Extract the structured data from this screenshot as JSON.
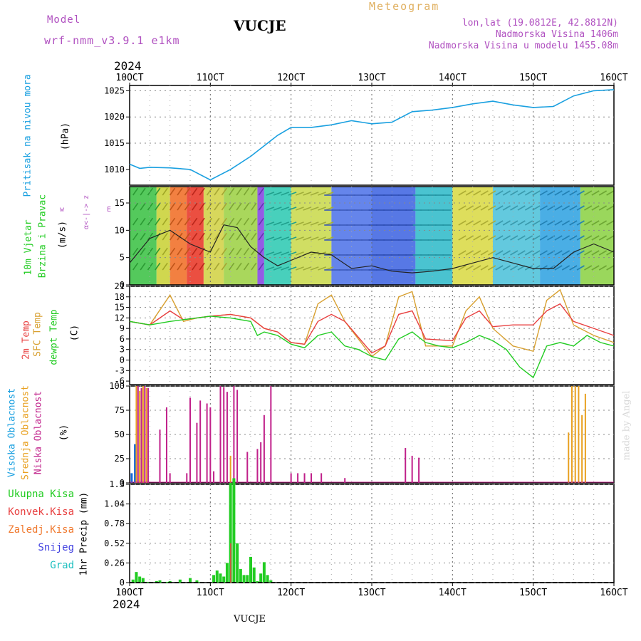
{
  "header": {
    "model_label": "Model",
    "model_name": "wrf-nmm_v3.9.1  e1km",
    "station": "VUCJE",
    "meteogram": "Meteogram",
    "lonlat": "lon,lat (19.0812E, 42.8812N)",
    "elevation": "Nadmorska Visina 1406m",
    "elevation_model": "Nadmorska Visina u modelu 1455.08m",
    "year_top": "2024",
    "year_bottom": "2024",
    "footer_station": "VUCJE",
    "watermark": "made by Angel"
  },
  "colors": {
    "pressure": "#1aa0e0",
    "temp2m": "#e84040",
    "sfc": "#d8a030",
    "dewpt": "#22cc22",
    "high_cloud": "#1a6ad8",
    "mid_cloud": "#e8a020",
    "low_cloud": "#c0208a",
    "rain_total": "#22cc22",
    "rain_conv": "#e84040",
    "snow": "#4040e0",
    "hail": "#20c0c0"
  },
  "chart_data": [
    {
      "type": "line",
      "panel": "pressure",
      "ylabel": [
        "Pritisak na nivou mora",
        "(hPa)"
      ],
      "ylim": [
        1007,
        1026
      ],
      "yticks": [
        1010,
        1015,
        1020,
        1025
      ],
      "x_unit": "hours since 10 Oct 00 UTC",
      "x_ticks": [
        "10OCT",
        "11OCT",
        "12OCT",
        "13OCT",
        "14OCT",
        "15OCT",
        "16OCT"
      ],
      "series": [
        {
          "name": "pressure",
          "x": [
            0,
            3,
            6,
            12,
            18,
            24,
            30,
            36,
            40,
            44,
            48,
            54,
            60,
            66,
            72,
            78,
            84,
            90,
            96,
            102,
            108,
            114,
            120,
            126,
            132,
            138,
            144
          ],
          "values": [
            1011,
            1010.2,
            1010.4,
            1010.3,
            1010,
            1008,
            1010,
            1012.5,
            1014.5,
            1016.5,
            1018,
            1018,
            1018.5,
            1019.3,
            1018.7,
            1019,
            1021,
            1021.3,
            1021.8,
            1022.5,
            1023,
            1022.3,
            1021.8,
            1022,
            1024,
            1025,
            1025.2
          ]
        }
      ]
    },
    {
      "type": "line",
      "panel": "wind",
      "ylabel": [
        "10m Vjetar",
        "Brzina i Pravac",
        "(m/s)"
      ],
      "compass": "N S W E",
      "ylim": [
        0,
        18
      ],
      "yticks": [
        0,
        5,
        10,
        15
      ],
      "series": [
        {
          "name": "wind speed",
          "x": [
            0,
            6,
            12,
            18,
            24,
            28,
            32,
            36,
            40,
            44,
            48,
            54,
            60,
            66,
            72,
            78,
            84,
            90,
            96,
            102,
            108,
            114,
            120,
            126,
            132,
            138,
            144
          ],
          "values": [
            4,
            8.5,
            10,
            7.5,
            6,
            11,
            10.5,
            7,
            5,
            3.5,
            4.5,
            6,
            5.5,
            3,
            3.5,
            2.5,
            2.2,
            2.5,
            3,
            4,
            5,
            4,
            3,
            3,
            6,
            7.5,
            6
          ]
        }
      ]
    },
    {
      "type": "line",
      "panel": "temperature",
      "ylabel": [
        "2m Temp",
        "SFC Temp",
        "dewpt Temp",
        "(C)"
      ],
      "ylim": [
        -7,
        21
      ],
      "yticks": [
        -6,
        -3,
        0,
        3,
        6,
        9,
        12,
        15,
        18,
        21
      ],
      "series": [
        {
          "name": "2m Temp",
          "x": [
            0,
            6,
            12,
            16,
            20,
            24,
            30,
            36,
            40,
            44,
            48,
            52,
            56,
            60,
            64,
            72,
            76,
            80,
            84,
            88,
            96,
            100,
            104,
            108,
            114,
            120,
            124,
            128,
            132,
            138,
            144
          ],
          "values": [
            11,
            10,
            14,
            11.5,
            12,
            12.5,
            13,
            12,
            9,
            8,
            5,
            4.5,
            11,
            13,
            11,
            2,
            4,
            13,
            14,
            6,
            5.5,
            12,
            14,
            9.5,
            10,
            10,
            14,
            16,
            11,
            9,
            7
          ]
        },
        {
          "name": "SFC Temp",
          "x": [
            0,
            6,
            12,
            16,
            20,
            24,
            30,
            36,
            40,
            44,
            48,
            52,
            56,
            60,
            64,
            72,
            76,
            80,
            84,
            88,
            96,
            100,
            104,
            108,
            114,
            120,
            124,
            128,
            132,
            138,
            144
          ],
          "values": [
            11,
            10,
            18.5,
            11,
            12,
            12.5,
            13,
            12,
            9,
            8,
            5,
            4.5,
            16,
            18.5,
            11,
            1,
            4,
            18,
            19.5,
            4,
            4,
            14,
            18,
            9,
            4,
            2.5,
            17,
            20,
            10,
            7,
            5
          ]
        },
        {
          "name": "dewpt Temp",
          "x": [
            0,
            6,
            12,
            16,
            20,
            24,
            30,
            36,
            38,
            40,
            44,
            48,
            52,
            56,
            60,
            64,
            68,
            72,
            76,
            80,
            84,
            88,
            92,
            96,
            100,
            104,
            108,
            112,
            116,
            120,
            124,
            128,
            132,
            136,
            140,
            144
          ],
          "values": [
            11,
            10,
            11,
            11.5,
            12,
            12.5,
            12,
            11,
            7,
            8,
            7,
            4.5,
            3.5,
            7,
            8,
            4,
            3,
            1,
            0,
            6,
            8,
            5,
            4,
            3.5,
            5,
            7,
            5.5,
            3,
            -2,
            -5,
            4,
            5,
            4,
            7,
            5,
            4
          ]
        }
      ]
    },
    {
      "type": "bar",
      "panel": "cloud",
      "ylabel": [
        "Visoka Oblacnost",
        "Srednja Oblacnost",
        "Niska Oblacnost",
        "(%)"
      ],
      "ylim": [
        0,
        100
      ],
      "yticks": [
        0,
        25,
        50,
        75,
        100
      ],
      "series": [
        {
          "name": "Visoka Oblacnost",
          "x": [
            0.5,
            1.5
          ],
          "values": [
            10,
            40
          ]
        },
        {
          "name": "Srednja Oblacnost",
          "x": [
            2,
            3,
            4,
            5,
            30,
            130.5,
            131.5,
            132.5,
            133.5,
            134.5,
            135.5
          ],
          "values": [
            100,
            95,
            100,
            98,
            28,
            52,
            100,
            100,
            100,
            70,
            92
          ]
        },
        {
          "name": "Niska Oblacnost",
          "x": [
            2.5,
            3.5,
            4.5,
            5.5,
            9,
            11,
            12,
            17,
            18,
            20,
            21,
            23,
            24,
            25,
            27,
            28,
            29,
            31,
            32,
            35,
            38,
            39,
            40,
            42,
            48,
            50,
            52,
            54,
            57,
            64,
            82,
            84,
            86
          ],
          "values": [
            100,
            98,
            100,
            98,
            55,
            78,
            10,
            10,
            88,
            62,
            85,
            82,
            78,
            12,
            100,
            99,
            94,
            100,
            96,
            32,
            35,
            42,
            70,
            100,
            10,
            10,
            10,
            10,
            10,
            5,
            36,
            28,
            26
          ]
        }
      ]
    },
    {
      "type": "bar",
      "panel": "precip",
      "ylabel": [
        "Ukupna Kisa",
        "Konvek.Kisa",
        "Zaledj.Kisa",
        "Snijeg",
        "Grad",
        "1hr Precip (mm)"
      ],
      "ylim": [
        0,
        1.3
      ],
      "yticks": [
        0,
        0.26,
        0.52,
        0.78,
        1.04,
        1.3
      ],
      "x_ticks": [
        "10OCT",
        "11OCT",
        "12OCT",
        "13OCT",
        "14OCT",
        "15OCT",
        "16OCT"
      ],
      "series": [
        {
          "name": "Ukupna Kisa",
          "x": [
            1,
            2,
            3,
            4,
            5,
            6,
            8,
            9,
            10,
            11,
            12,
            15,
            18,
            20,
            21,
            25,
            26,
            27,
            28,
            29,
            30,
            31,
            32,
            33,
            34,
            35,
            36,
            37,
            38,
            39,
            40,
            41,
            42
          ],
          "values": [
            0.04,
            0.14,
            0.08,
            0.06,
            0.01,
            0.01,
            0.02,
            0.03,
            0.01,
            0.01,
            0.02,
            0.04,
            0.06,
            0.03,
            0.01,
            0.1,
            0.16,
            0.12,
            0.08,
            0.26,
            1.32,
            1.38,
            0.52,
            0.18,
            0.1,
            0.1,
            0.34,
            0.2,
            0.02,
            0.12,
            0.27,
            0.1,
            0.03
          ]
        },
        {
          "name": "Konvek.Kisa",
          "x": [
            30
          ],
          "values": [
            0.52
          ]
        }
      ]
    }
  ]
}
